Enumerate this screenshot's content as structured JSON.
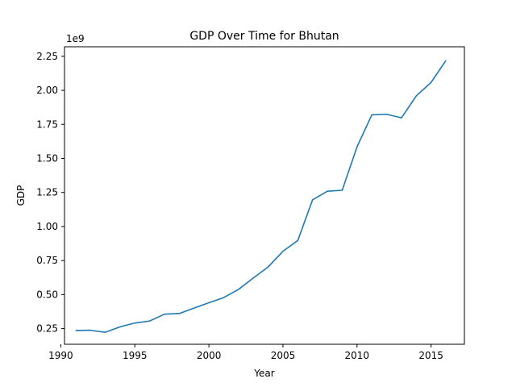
{
  "chart_data": {
    "type": "line",
    "title": "GDP Over Time for Bhutan",
    "xlabel": "Year",
    "ylabel": "GDP",
    "y_offset_label": "1e9",
    "xlim": [
      1990.25,
      2017.25
    ],
    "ylim": [
      0.135,
      2.32
    ],
    "x_ticks": [
      1990,
      1995,
      2000,
      2005,
      2010,
      2015
    ],
    "x_tick_labels": [
      "1990",
      "1995",
      "2000",
      "2005",
      "2010",
      "2015"
    ],
    "y_ticks": [
      0.25,
      0.5,
      0.75,
      1.0,
      1.25,
      1.5,
      1.75,
      2.0,
      2.25
    ],
    "y_tick_labels": [
      "0.25",
      "0.50",
      "0.75",
      "1.00",
      "1.25",
      "1.50",
      "1.75",
      "2.00",
      "2.25"
    ],
    "grid": false,
    "series": [
      {
        "color": "#1f77b4",
        "x": [
          1991,
          1992,
          1993,
          1994,
          1995,
          1996,
          1997,
          1998,
          1999,
          2000,
          2001,
          2002,
          2003,
          2004,
          2005,
          2006,
          2007,
          2008,
          2009,
          2010,
          2011,
          2012,
          2013,
          2014,
          2015,
          2016
        ],
        "y": [
          0.236,
          0.238,
          0.223,
          0.263,
          0.291,
          0.306,
          0.356,
          0.361,
          0.401,
          0.44,
          0.478,
          0.538,
          0.622,
          0.703,
          0.818,
          0.897,
          1.196,
          1.259,
          1.266,
          1.585,
          1.82,
          1.824,
          1.798,
          1.959,
          2.058,
          2.219
        ]
      }
    ]
  }
}
